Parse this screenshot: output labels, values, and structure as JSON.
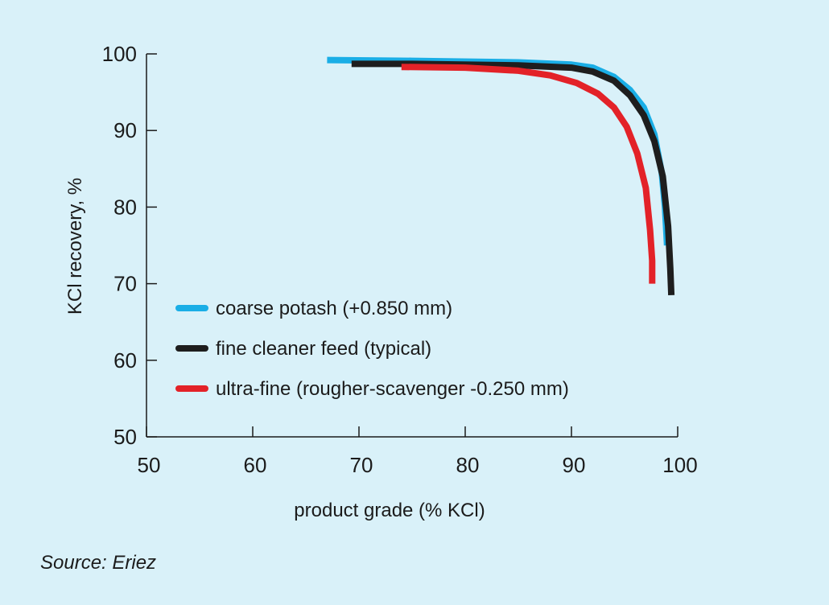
{
  "chart_data": {
    "type": "line",
    "title": "",
    "xlabel": "product grade (% KCl)",
    "ylabel": "KCl recovery, %",
    "xlim": [
      50,
      100
    ],
    "ylim": [
      50,
      100
    ],
    "xticks": [
      50,
      60,
      70,
      80,
      90,
      100
    ],
    "yticks": [
      50,
      60,
      70,
      80,
      90,
      100
    ],
    "grid": false,
    "legend_position": "inside-lower-left",
    "series": [
      {
        "name": "coarse potash (+0.850 mm)",
        "color": "#1aaee6",
        "points": [
          [
            67,
            99.2
          ],
          [
            75,
            99.1
          ],
          [
            85,
            98.9
          ],
          [
            90,
            98.6
          ],
          [
            92,
            98.2
          ],
          [
            94,
            97.0
          ],
          [
            95.5,
            95.3
          ],
          [
            96.8,
            93.0
          ],
          [
            97.8,
            89.5
          ],
          [
            98.5,
            84.5
          ],
          [
            98.8,
            80.0
          ],
          [
            99.0,
            75.0
          ]
        ]
      },
      {
        "name": "fine cleaner feed (typical)",
        "color": "#1e1e1e",
        "points": [
          [
            69.3,
            98.7
          ],
          [
            75,
            98.7
          ],
          [
            85,
            98.5
          ],
          [
            90,
            98.2
          ],
          [
            92,
            97.7
          ],
          [
            94,
            96.5
          ],
          [
            95.5,
            94.6
          ],
          [
            96.8,
            92.0
          ],
          [
            97.8,
            88.6
          ],
          [
            98.6,
            84.0
          ],
          [
            99.1,
            77.5
          ],
          [
            99.3,
            72.0
          ],
          [
            99.4,
            68.5
          ]
        ]
      },
      {
        "name": "ultra-fine (rougher-scavenger -0.250 mm)",
        "color": "#e32228",
        "points": [
          [
            74,
            98.3
          ],
          [
            80,
            98.2
          ],
          [
            85,
            97.8
          ],
          [
            88,
            97.2
          ],
          [
            90.5,
            96.2
          ],
          [
            92.5,
            94.8
          ],
          [
            94,
            93.0
          ],
          [
            95.2,
            90.5
          ],
          [
            96.2,
            87.0
          ],
          [
            97.0,
            82.5
          ],
          [
            97.4,
            77.0
          ],
          [
            97.6,
            73.0
          ],
          [
            97.6,
            70.0
          ]
        ]
      }
    ]
  },
  "source": "Source: Eriez"
}
